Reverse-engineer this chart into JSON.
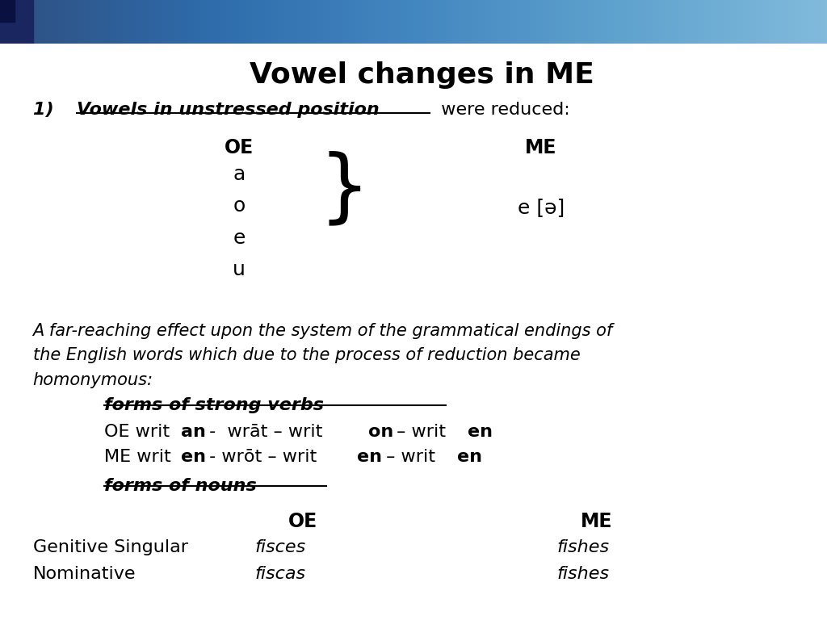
{
  "title": "Vowel changes in ME",
  "bg_color": "#ffffff",
  "fig_width": 10.24,
  "fig_height": 7.68,
  "fs_title": 26,
  "fs_body": 16,
  "vowels": [
    "a",
    "o",
    "e",
    "u"
  ],
  "schwa": "e [ə]",
  "para_text_line1": "A far-reaching effect upon the system of the grammatical endings of",
  "para_text_line2": "the English words which due to the process of reduction became",
  "para_text_line3": "homonymous:",
  "fsv_label": "forms of strong verbs",
  "fon_label": "forms of nouns",
  "oe_label": "OE",
  "me_label": "ME",
  "oe_verbs_prefix": "OE writ",
  "oe_verbs_bold1": "an",
  "oe_verbs_mid1": " -  wrāt – writ",
  "oe_verbs_bold2": "on",
  "oe_verbs_mid2": " – writ",
  "oe_verbs_bold3": "en",
  "me_verbs_prefix": "ME writ",
  "me_verbs_bold1": "en",
  "me_verbs_mid1": " - wrōt – writ",
  "me_verbs_bold2": "en",
  "me_verbs_mid2": " – writ",
  "me_verbs_bold3": "en",
  "gen_sing_label": "Genitive Singular",
  "nom_label": "Nominative",
  "oe_gen": "fisces",
  "oe_nom": "fiscas",
  "me_gen": "fishes",
  "me_nom": "fishes",
  "section1_num": "1)  ",
  "section1_underline": "Vowels in unstressed position",
  "section1_rest": "  were reduced:"
}
